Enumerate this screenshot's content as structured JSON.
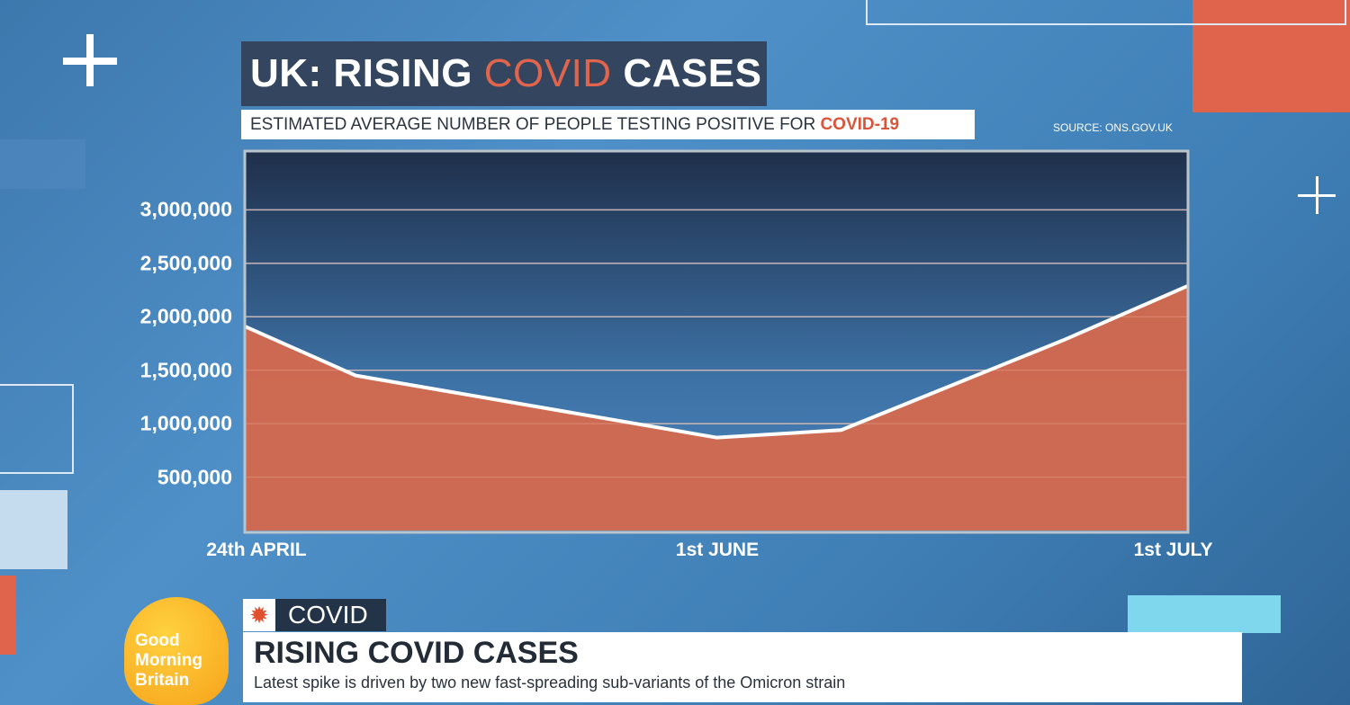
{
  "header": {
    "title_part1": "UK: RISING ",
    "title_accent": "COVID",
    "title_part2": " CASES",
    "subtitle_part1": "ESTIMATED AVERAGE NUMBER OF PEOPLE TESTING POSITIVE FOR ",
    "subtitle_accent": "COVID-19",
    "source": "SOURCE: ONS.GOV.UK"
  },
  "chart_data": {
    "type": "area",
    "title": "UK: RISING COVID CASES",
    "subtitle": "ESTIMATED AVERAGE NUMBER OF PEOPLE TESTING POSITIVE FOR COVID-19",
    "x_unit": "days since 24th April",
    "x": [
      0,
      8,
      34,
      43,
      59,
      68
    ],
    "values": [
      1910000,
      1450000,
      870000,
      940000,
      1780000,
      2290000
    ],
    "xlim": [
      0,
      68
    ],
    "ylim": [
      0,
      3550000
    ],
    "y_ticks": [
      {
        "value": 500000,
        "label": "500,000"
      },
      {
        "value": 1000000,
        "label": "1,000,000"
      },
      {
        "value": 1500000,
        "label": "1,500,000"
      },
      {
        "value": 2000000,
        "label": "2,000,000"
      },
      {
        "value": 2500000,
        "label": "2,500,000"
      },
      {
        "value": 3000000,
        "label": "3,000,000"
      }
    ],
    "x_ticks": [
      {
        "value": 0,
        "label": "24th APRIL"
      },
      {
        "value": 34.5,
        "label": "1st JUNE"
      },
      {
        "value": 67,
        "label": "1st JULY"
      }
    ],
    "grid": true,
    "fill_color": "#d2694f",
    "line_color": "#ffffff"
  },
  "ticker": {
    "logo_text": [
      "Good",
      "Morning",
      "Britain"
    ],
    "tag": "COVID",
    "headline": "RISING COVID CASES",
    "strap": "Latest spike is driven by two new fast-spreading sub-variants of the Omicron strain"
  }
}
